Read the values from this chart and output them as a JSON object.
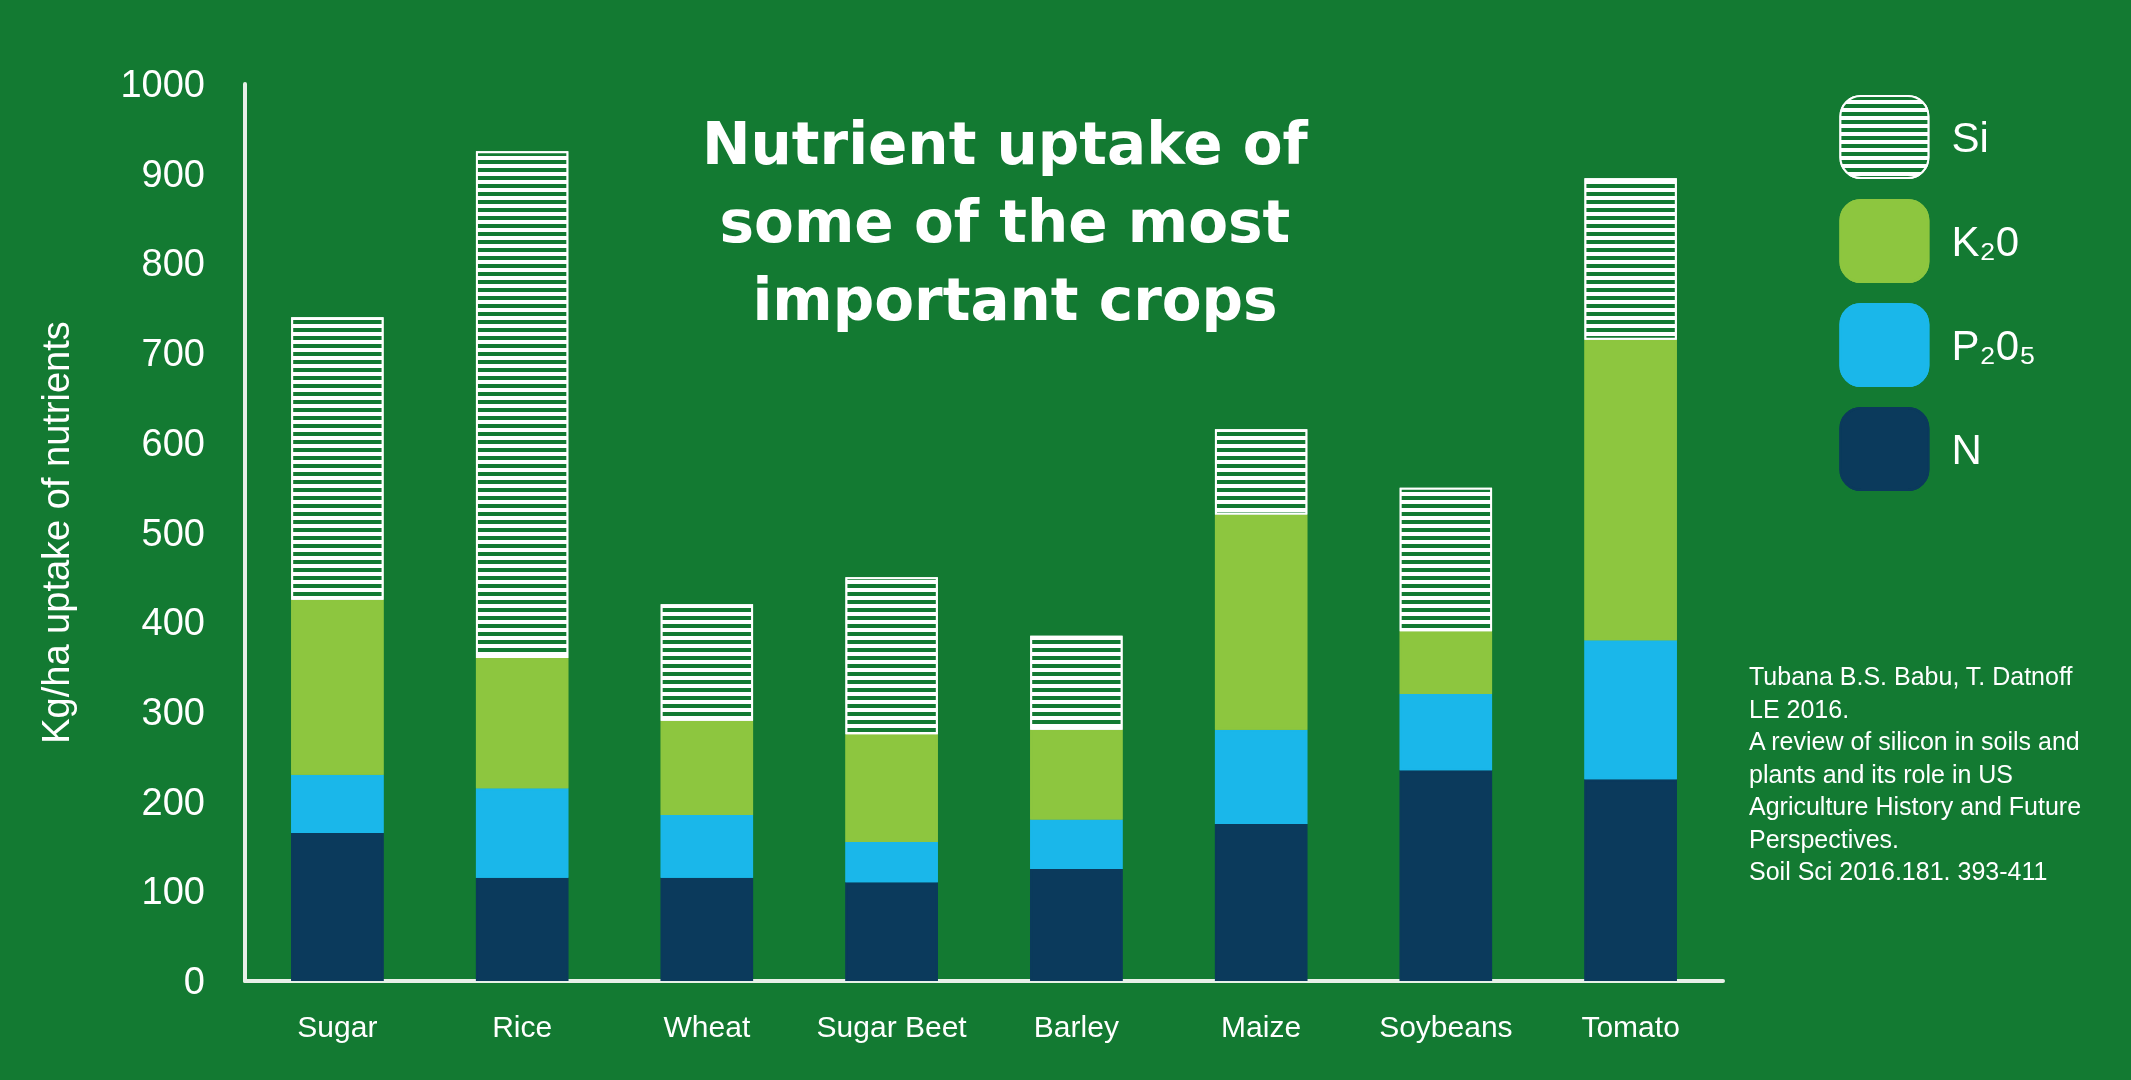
{
  "chart_data": {
    "type": "bar",
    "title": "Nutrient uptake of some of the most important crops",
    "ylabel": "Kg/ha uptake of nutrients",
    "categories": [
      "Sugar",
      "Rice",
      "Wheat",
      "Sugar Beet",
      "Barley",
      "Maize",
      "Soybeans",
      "Tomato"
    ],
    "stacked": true,
    "ylim": [
      0,
      1000
    ],
    "yticks": [
      0,
      100,
      200,
      300,
      400,
      500,
      600,
      700,
      800,
      900,
      1000
    ],
    "grid": false,
    "legend": "top right",
    "series": [
      {
        "name": "N",
        "color": "#0b3a5c",
        "values": [
          165,
          115,
          115,
          110,
          125,
          175,
          235,
          225
        ]
      },
      {
        "name": "P₂0₅",
        "color": "#1ab7ea",
        "values": [
          65,
          100,
          70,
          45,
          55,
          105,
          85,
          155
        ]
      },
      {
        "name": "K₂0",
        "color": "#8dc63f",
        "values": [
          195,
          145,
          105,
          120,
          100,
          240,
          70,
          335
        ]
      },
      {
        "name": "Si",
        "color": "#ffffff",
        "values": [
          315,
          565,
          130,
          175,
          105,
          95,
          160,
          180
        ]
      }
    ],
    "annotations": [
      "Tubana B.S. Babu, T. Datnoff LE 2016.\nA review of silicon in soils and plants and its role in US Agriculture History and Future Perspectives.\nSoil Sci 2016.181. 393-411"
    ]
  }
}
